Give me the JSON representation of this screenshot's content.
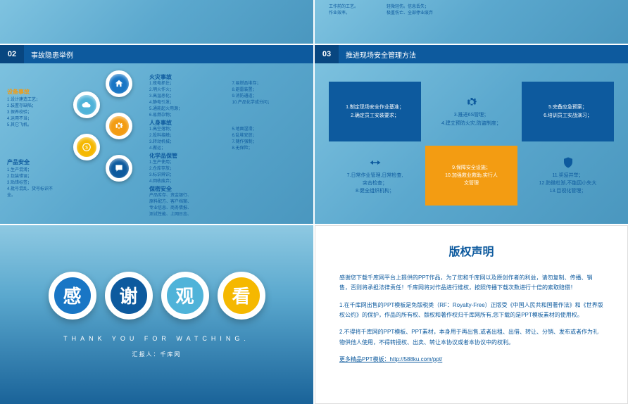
{
  "s2": {
    "lines_left": [
      "工作前的工艺。",
      "作业效率。"
    ],
    "lines_right": [
      "轻微轻伤。信息丢失；",
      "极重伤亡、全部停业废弃"
    ]
  },
  "s3": {
    "header_num": "02",
    "header_title": "事故隐患举例",
    "left_top_label": "设备事故",
    "left_top_lines": [
      "1.设计建造工艺；",
      "2.装置存缺陷；",
      "3.保养校验；",
      "4.运用不当；",
      "5.其它飞机。"
    ],
    "left_bot_label": "产品安全",
    "left_bot_lines": [
      "1.生产混淆；",
      "2.包装错误；",
      "3.贴错标签；",
      "4.批号混乱、货号标识不全。"
    ],
    "right": [
      {
        "label": "火灾事故",
        "cls": "b",
        "col1": [
          "1.夜电抓住；",
          "2.明火作火；",
          "3.高温恶化；",
          "4.静电引发；",
          "5.通能起火用源；",
          "6.易燃杂物；"
        ],
        "col2": [
          "7.易燃品堆存；",
          "8.避雷装置；",
          "9.消防通道；",
          "10.产品化学成分问；"
        ]
      },
      {
        "label": "人身事故",
        "cls": "b",
        "col1": [
          "1.高空落物；",
          "2.投料接触；",
          "3.转动机械；",
          "4.搬运；"
        ],
        "col2": [
          "5.地面湿滑；",
          "6.乱堆安放；",
          "7.随作强制；",
          "8.无保险；"
        ]
      },
      {
        "label": "化学品保管",
        "cls": "b",
        "col1": [
          "1.生产使用；",
          "2.仓库存放；",
          "3.标识辨识；",
          "4.回收废弃；"
        ],
        "col2": []
      },
      {
        "label": "保密安全",
        "cls": "b",
        "col1": [
          "产品库存、资金银行、",
          "原料配方、客户档案、",
          "专业信息、商务情报、",
          "测试性能、上网日志、"
        ],
        "col2": []
      }
    ],
    "node_colors": [
      "#1976c5",
      "#4fb3d9",
      "#f39c12",
      "#f5b800",
      "#0d5a9e"
    ]
  },
  "s4": {
    "header_num": "03",
    "header_title": "推进现场安全管理方法",
    "cells": [
      {
        "type": "fill-blue",
        "lines": [
          "1.制定现场安全作业基准；",
          "2.确定员工安装要求；"
        ]
      },
      {
        "type": "icon",
        "icon": "gear",
        "lines": [
          "3.推进6S管理；",
          "4.建立预防火灾,防盗制度；"
        ]
      },
      {
        "type": "fill-blue",
        "lines": [
          "5.完备应急预案；",
          "6.培训员工实战演习；"
        ]
      },
      {
        "type": "icon",
        "icon": "hands",
        "lines": [
          "7.日常作业管理,日常检查,",
          "突击检查；",
          "8.健全组织机构；"
        ]
      },
      {
        "type": "fill-orange",
        "lines": [
          "9.保障安全设施；",
          "10.加强救业救助,实行人",
          "文管理"
        ]
      },
      {
        "type": "icon",
        "icon": "shield",
        "lines": [
          "11.奖惩并举；",
          "12.防微杜渐,不能因小失大",
          "13.目视化管理；"
        ]
      }
    ]
  },
  "s5": {
    "chars": [
      "感",
      "谢",
      "观",
      "看"
    ],
    "english": "THANK YOU FOR WATCHING.",
    "presenter": "汇报人：千库网"
  },
  "s6": {
    "title": "版权声明",
    "p1": "感谢您下载千库网平台上提供的PPT作品，为了您和千库网以及原创作者的利益，请勿复制、传播、销售，否则将承担法律责任！千库网将对作品进行维权，按照传播下载次数进行十倍的索取赔偿！",
    "p2": "1.在千库网出售的PPT模板是免版税类（RF：Royalty-Free）正版受《中国人民共和国著作法》和《世界版权公约》的保护，作品的所有权、版权和著作权归千库网所有,您下载的是PPT模板素材的使用权。",
    "p3": "2.不得将千库网的PPT模板、PPT素材，本身用于再出售,或者出租、出借、转让、分销、发布或者作为礼物供他人使用，不得转授权、出卖、转让本协议或者本协议中的权利。",
    "link_label": "更多精品PPT模板：http://588ku.com/ppt/",
    "link_href": "http://588ku.com/ppt/"
  }
}
